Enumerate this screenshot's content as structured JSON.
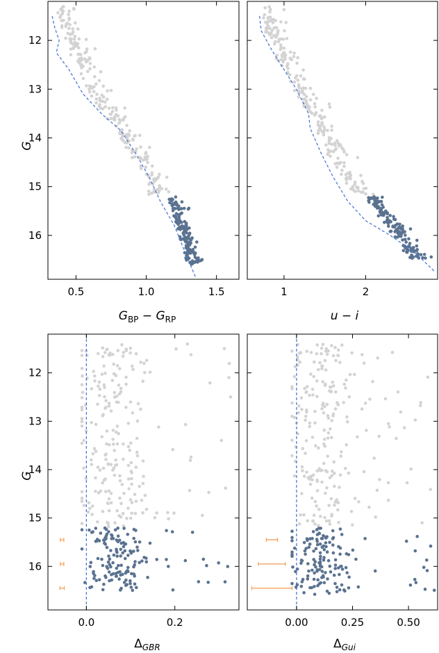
{
  "chart_data": [
    {
      "type": "scatter",
      "panel": "top-left",
      "xlabel": "G_BP − G_RP",
      "ylabel": "G",
      "xlim": [
        0.3,
        1.66
      ],
      "ylim": [
        16.9,
        11.2
      ],
      "y_inverted": true,
      "xticks": [
        0.5,
        1.0,
        1.5
      ],
      "xtick_labels": [
        "0.5",
        "1.0",
        "1.5"
      ],
      "yticks": [
        12,
        13,
        14,
        15,
        16
      ],
      "ytick_labels": [
        "12",
        "13",
        "14",
        "15",
        "16"
      ],
      "grid": false,
      "series": [
        {
          "role": "bright",
          "color": "#d3d3d3",
          "points": "ridge",
          "g_range": [
            11.3,
            15.2
          ],
          "ridge": [
            [
              11.5,
              0.35
            ],
            [
              12.0,
              0.43
            ],
            [
              13.0,
              0.58
            ],
            [
              14.0,
              0.82
            ],
            [
              15.0,
              1.02
            ]
          ],
          "width": 0.1,
          "n": 230
        },
        {
          "role": "faint",
          "color": "#5a7290",
          "points": "ridge",
          "g_range": [
            15.2,
            16.6
          ],
          "ridge": [
            [
              15.2,
              1.15
            ],
            [
              16.6,
              1.3
            ]
          ],
          "width": 0.07,
          "n": 150
        }
      ],
      "lines": [
        {
          "role": "fiducial",
          "color": "#4a78d6",
          "style": "dashed",
          "points": [
            [
              0.33,
              11.5
            ],
            [
              0.35,
              11.75
            ],
            [
              0.38,
              12.0
            ],
            [
              0.36,
              12.25
            ],
            [
              0.45,
              12.6
            ],
            [
              0.55,
              13.1
            ],
            [
              0.68,
              13.5
            ],
            [
              0.82,
              13.85
            ],
            [
              0.92,
              14.3
            ],
            [
              1.02,
              14.8
            ],
            [
              1.1,
              15.3
            ],
            [
              1.2,
              15.8
            ],
            [
              1.27,
              16.3
            ],
            [
              1.35,
              16.85
            ]
          ]
        }
      ]
    },
    {
      "type": "scatter",
      "panel": "top-right",
      "xlabel": "u − i",
      "ylabel": "",
      "xlim": [
        0.55,
        2.88
      ],
      "ylim": [
        16.9,
        11.2
      ],
      "y_inverted": true,
      "xticks": [
        1,
        2
      ],
      "xtick_labels": [
        "1",
        "2"
      ],
      "yticks": [
        12,
        13,
        14,
        15,
        16
      ],
      "ytick_labels": [],
      "grid": false,
      "series": [
        {
          "role": "bright",
          "color": "#d3d3d3",
          "points": "ridge",
          "g_range": [
            11.3,
            15.2
          ],
          "ridge": [
            [
              11.5,
              0.72
            ],
            [
              12.5,
              0.95
            ],
            [
              13.5,
              1.3
            ],
            [
              14.5,
              1.6
            ],
            [
              15.2,
              1.85
            ]
          ],
          "width": 0.18,
          "n": 230
        },
        {
          "role": "faint",
          "color": "#5a7290",
          "points": "ridge",
          "g_range": [
            15.2,
            16.5
          ],
          "ridge": [
            [
              15.2,
              2.0
            ],
            [
              16.5,
              2.55
            ]
          ],
          "width": 0.16,
          "n": 150
        }
      ],
      "lines": [
        {
          "role": "fiducial",
          "color": "#4a78d6",
          "style": "dashed",
          "points": [
            [
              0.7,
              11.5
            ],
            [
              0.72,
              11.8
            ],
            [
              0.85,
              12.2
            ],
            [
              1.0,
              12.6
            ],
            [
              1.15,
              13.0
            ],
            [
              1.3,
              13.5
            ],
            [
              1.32,
              13.8
            ],
            [
              1.45,
              14.3
            ],
            [
              1.6,
              14.8
            ],
            [
              1.78,
              15.3
            ],
            [
              2.0,
              15.7
            ],
            [
              2.3,
              16.0
            ],
            [
              2.6,
              16.35
            ],
            [
              2.85,
              16.75
            ]
          ]
        }
      ]
    },
    {
      "type": "scatter",
      "panel": "bottom-left",
      "xlabel": "Δ_GBR",
      "ylabel": "G",
      "xlim": [
        -0.087,
        0.345
      ],
      "ylim": [
        16.9,
        11.2
      ],
      "y_inverted": true,
      "xticks": [
        0.0,
        0.2
      ],
      "xtick_labels": [
        "0.0",
        "0.2"
      ],
      "yticks": [
        12,
        13,
        14,
        15,
        16
      ],
      "ytick_labels": [
        "12",
        "13",
        "14",
        "15",
        "16"
      ],
      "grid": false,
      "series": [
        {
          "role": "bright",
          "color": "#d3d3d3",
          "points": "offset",
          "g_range": [
            11.4,
            15.2
          ],
          "center": 0.055,
          "spread": 0.06,
          "x_min": -0.01,
          "x_max": 0.33,
          "n": 230
        },
        {
          "role": "faint",
          "color": "#5a7290",
          "points": "offset",
          "g_range": [
            15.2,
            16.5
          ],
          "center": 0.06,
          "spread": 0.045,
          "x_min": -0.01,
          "x_max": 0.32,
          "n": 150
        }
      ],
      "vline": {
        "x": 0.0,
        "color": "#4a78d6",
        "style": "dashed"
      },
      "errorbars": {
        "color": "#f5a360",
        "x": -0.055,
        "items": [
          {
            "g": 15.45,
            "xerr": 0.004
          },
          {
            "g": 15.95,
            "xerr": 0.004
          },
          {
            "g": 16.45,
            "xerr": 0.005
          }
        ]
      }
    },
    {
      "type": "scatter",
      "panel": "bottom-right",
      "xlabel": "Δ_Gui",
      "ylabel": "",
      "xlim": [
        -0.22,
        0.63
      ],
      "ylim": [
        16.9,
        11.2
      ],
      "y_inverted": true,
      "xticks": [
        0.0,
        0.25,
        0.5
      ],
      "xtick_labels": [
        "0.00",
        "0.25",
        "0.50"
      ],
      "yticks": [
        12,
        13,
        14,
        15,
        16
      ],
      "ytick_labels": [],
      "grid": false,
      "series": [
        {
          "role": "bright",
          "color": "#d3d3d3",
          "points": "offset",
          "g_range": [
            11.4,
            15.2
          ],
          "center": 0.1,
          "spread": 0.11,
          "x_min": -0.02,
          "x_max": 0.6,
          "n": 230
        },
        {
          "role": "faint",
          "color": "#5a7290",
          "points": "offset",
          "g_range": [
            15.2,
            16.6
          ],
          "center": 0.1,
          "spread": 0.09,
          "x_min": -0.02,
          "x_max": 0.62,
          "n": 150
        }
      ],
      "vline": {
        "x": 0.0,
        "color": "#4a78d6",
        "style": "dashed"
      },
      "errorbars": {
        "color": "#f5a360",
        "x": -0.11,
        "items": [
          {
            "g": 15.45,
            "xerr": 0.025
          },
          {
            "g": 15.95,
            "xerr": 0.06
          },
          {
            "g": 16.45,
            "xerr": 0.09
          }
        ]
      }
    }
  ]
}
